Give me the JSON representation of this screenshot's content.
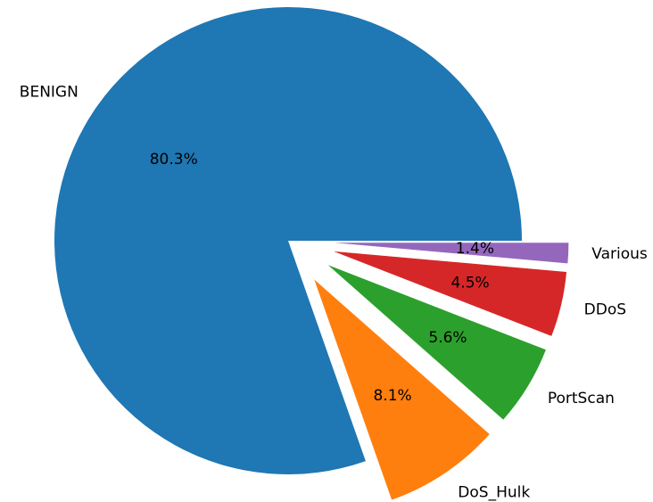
{
  "chart_data": {
    "type": "pie",
    "start_angle_deg": 0,
    "direction": "counterclockwise",
    "autopct_format": "%1.1f%%",
    "slices": [
      {
        "label": "BENIGN",
        "value": 80.3,
        "pct_label": "80.3%",
        "color": "#1f77b4",
        "explode": 0.0
      },
      {
        "label": "DoS_Hulk",
        "value": 8.1,
        "pct_label": "8.1%",
        "color": "#ff7f0e",
        "explode": 0.2
      },
      {
        "label": "PortScan",
        "value": 5.6,
        "pct_label": "5.6%",
        "color": "#2ca02c",
        "explode": 0.2
      },
      {
        "label": "DDoS",
        "value": 4.5,
        "pct_label": "4.5%",
        "color": "#d62728",
        "explode": 0.2
      },
      {
        "label": "Various",
        "value": 1.4,
        "pct_label": "1.4%",
        "color": "#9467bd",
        "explode": 0.2
      }
    ]
  }
}
